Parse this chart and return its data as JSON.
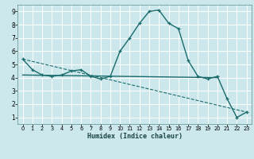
{
  "xlabel": "Humidex (Indice chaleur)",
  "bg_color": "#cce8ec",
  "grid_color": "#ffffff",
  "line_color": "#1a6b6b",
  "xlim": [
    -0.5,
    23.5
  ],
  "ylim": [
    0.5,
    9.5
  ],
  "xticks": [
    0,
    1,
    2,
    3,
    4,
    5,
    6,
    7,
    8,
    9,
    10,
    11,
    12,
    13,
    14,
    15,
    16,
    17,
    18,
    19,
    20,
    21,
    22,
    23
  ],
  "yticks": [
    1,
    2,
    3,
    4,
    5,
    6,
    7,
    8,
    9
  ],
  "line1_x": [
    0,
    1,
    2,
    3,
    4,
    5,
    6,
    7,
    8,
    9,
    10,
    11,
    12,
    13,
    14,
    15,
    16,
    17,
    18,
    19,
    20,
    21,
    22,
    23
  ],
  "line1_y": [
    5.4,
    4.6,
    4.2,
    4.1,
    4.2,
    4.5,
    4.6,
    4.1,
    3.9,
    4.1,
    6.0,
    7.0,
    8.1,
    9.0,
    9.1,
    8.1,
    7.7,
    5.3,
    4.1,
    3.9,
    4.1,
    2.4,
    1.0,
    1.4
  ],
  "line2_x": [
    0,
    23
  ],
  "line2_y": [
    5.4,
    1.4
  ],
  "line3_x": [
    0,
    20
  ],
  "line3_y": [
    4.2,
    4.0
  ]
}
